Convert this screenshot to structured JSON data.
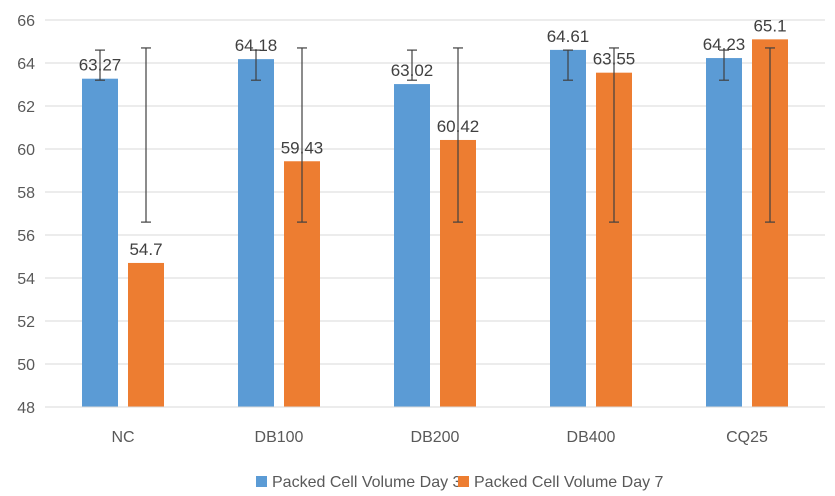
{
  "chart_data": {
    "type": "bar",
    "title": "",
    "xlabel": "",
    "ylabel": "",
    "ylim": [
      48,
      66
    ],
    "y_ticks": [
      48,
      50,
      52,
      54,
      56,
      58,
      60,
      62,
      64,
      66
    ],
    "grid": "horizontal",
    "legend_position": "bottom",
    "categories": [
      "NC",
      "DB100",
      "DB200",
      "DB400",
      "CQ25"
    ],
    "series": [
      {
        "name": "Packed Cell Volume Day 3",
        "color": "#5B9BD5",
        "values": [
          63.27,
          64.18,
          63.02,
          64.61,
          64.23
        ],
        "labels": [
          "63.27",
          "64.18",
          "63.02",
          "64.61",
          "64.23"
        ],
        "error_low": [
          63.2,
          63.2,
          63.2,
          63.2,
          63.2
        ],
        "error_high": [
          64.6,
          64.6,
          64.6,
          64.6,
          64.6
        ]
      },
      {
        "name": "Packed Cell Volume Day 7",
        "color": "#ED7D31",
        "values": [
          54.7,
          59.43,
          60.42,
          63.55,
          65.1
        ],
        "labels": [
          "54.7",
          "59.43",
          "60.42",
          "63.55",
          "65.1"
        ],
        "error_low": [
          56.6,
          56.6,
          56.6,
          56.6,
          56.6
        ],
        "error_high": [
          64.7,
          64.7,
          64.7,
          64.7,
          64.7
        ]
      }
    ]
  }
}
